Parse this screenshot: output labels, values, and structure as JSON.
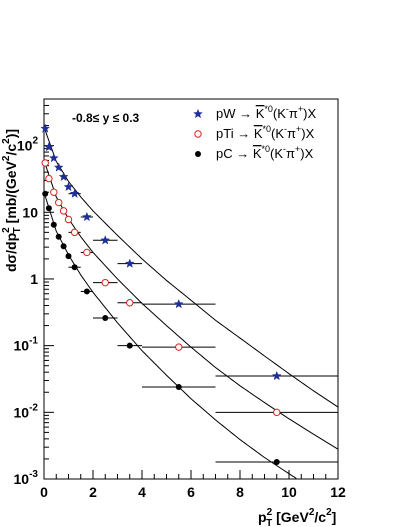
{
  "chart_data": {
    "type": "scatter",
    "title": "",
    "annotation": "-0.8≤ y ≤ 0.3",
    "xlabel": "p_T^2 [GeV^2/c^2]",
    "xlabel_parts": {
      "p": "p",
      "sup": "2",
      "sub": "T",
      "rest": " [GeV",
      "sup2": "2",
      "rest2": "/c",
      "sup3": "2",
      "end": "]"
    },
    "ylabel": "dσ/dp_T^2 [mb/(GeV^2/c^2)]",
    "ylabel_parts": {
      "pre": "dσ/dp",
      "sup": "2",
      "sub": "T",
      "mid": " [mb/(GeV",
      "sup2": "2",
      "mid2": "/c",
      "sup3": "2",
      "end": ")]"
    },
    "xlim": [
      0,
      12
    ],
    "ylim": [
      0.001,
      500
    ],
    "yscale": "log",
    "x_ticks": [
      0,
      2,
      4,
      6,
      8,
      10,
      12
    ],
    "x_tick_labels": [
      "0",
      "2",
      "4",
      "6",
      "8",
      "10",
      "12"
    ],
    "y_tick_labels": [
      {
        "value": 0.001,
        "base": "10",
        "exp": "-3"
      },
      {
        "value": 0.01,
        "base": "10",
        "exp": "-2"
      },
      {
        "value": 0.1,
        "base": "10",
        "exp": "-1"
      },
      {
        "value": 1,
        "base": "1",
        "exp": ""
      },
      {
        "value": 10,
        "base": "10",
        "exp": ""
      },
      {
        "value": 100,
        "base": "10",
        "exp": "2"
      }
    ],
    "grid": false,
    "legend_position": "top-right",
    "series": [
      {
        "name": "pW → K*0(K⁻π⁺)X",
        "label_parts": {
          "a": "pW → ",
          "k": "K",
          "sup": "*0",
          "b": "(K",
          "sup2": "-",
          "c": "π",
          "sup3": "+",
          "d": ")X"
        },
        "marker": "star",
        "color": "#1f2f9a",
        "points": [
          {
            "x": 0.05,
            "y": 180,
            "xerr": 0.05
          },
          {
            "x": 0.2,
            "y": 95,
            "xerr": 0.1
          },
          {
            "x": 0.4,
            "y": 65,
            "xerr": 0.1
          },
          {
            "x": 0.6,
            "y": 47,
            "xerr": 0.1
          },
          {
            "x": 0.8,
            "y": 34,
            "xerr": 0.1
          },
          {
            "x": 1.0,
            "y": 24,
            "xerr": 0.1
          },
          {
            "x": 1.25,
            "y": 19,
            "xerr": 0.25
          },
          {
            "x": 1.75,
            "y": 8.5,
            "xerr": 0.25
          },
          {
            "x": 2.5,
            "y": 3.8,
            "xerr": 0.5
          },
          {
            "x": 3.5,
            "y": 1.7,
            "xerr": 0.5
          },
          {
            "x": 5.5,
            "y": 0.42,
            "xerr": 1.5
          },
          {
            "x": 9.5,
            "y": 0.035,
            "xerr": 2.5
          }
        ]
      },
      {
        "name": "pTi → K*0(K⁻π⁺)X",
        "label_parts": {
          "a": "pTi → ",
          "k": "K",
          "sup": "*0",
          "b": "(K",
          "sup2": "-",
          "c": "π",
          "sup3": "+",
          "d": ")X"
        },
        "marker": "open-circle",
        "color": "#e02020",
        "points": [
          {
            "x": 0.05,
            "y": 55,
            "xerr": 0.05
          },
          {
            "x": 0.2,
            "y": 32,
            "xerr": 0.1
          },
          {
            "x": 0.4,
            "y": 20,
            "xerr": 0.1
          },
          {
            "x": 0.6,
            "y": 14,
            "xerr": 0.1
          },
          {
            "x": 0.8,
            "y": 10.5,
            "xerr": 0.1
          },
          {
            "x": 1.0,
            "y": 7.8,
            "xerr": 0.1
          },
          {
            "x": 1.25,
            "y": 5.0,
            "xerr": 0.25
          },
          {
            "x": 1.75,
            "y": 2.5,
            "xerr": 0.25
          },
          {
            "x": 2.5,
            "y": 0.88,
            "xerr": 0.5
          },
          {
            "x": 3.5,
            "y": 0.44,
            "xerr": 0.5
          },
          {
            "x": 5.5,
            "y": 0.095,
            "xerr": 1.5
          },
          {
            "x": 9.5,
            "y": 0.01,
            "xerr": 2.5
          }
        ]
      },
      {
        "name": "pC → K*0(K⁻π⁺)X",
        "label_parts": {
          "a": "pC → ",
          "k": "K",
          "sup": "*0",
          "b": "(K",
          "sup2": "-",
          "c": "π",
          "sup3": "+",
          "d": ")X"
        },
        "marker": "filled-circle",
        "color": "#000000",
        "points": [
          {
            "x": 0.05,
            "y": 19,
            "xerr": 0.05
          },
          {
            "x": 0.2,
            "y": 11.5,
            "xerr": 0.1
          },
          {
            "x": 0.4,
            "y": 6.5,
            "xerr": 0.1
          },
          {
            "x": 0.6,
            "y": 4.3,
            "xerr": 0.1
          },
          {
            "x": 0.8,
            "y": 3.1,
            "xerr": 0.1
          },
          {
            "x": 1.0,
            "y": 2.2,
            "xerr": 0.1
          },
          {
            "x": 1.25,
            "y": 1.5,
            "xerr": 0.25
          },
          {
            "x": 1.75,
            "y": 0.65,
            "xerr": 0.25
          },
          {
            "x": 2.5,
            "y": 0.26,
            "xerr": 0.5
          },
          {
            "x": 3.5,
            "y": 0.1,
            "xerr": 0.5
          },
          {
            "x": 5.5,
            "y": 0.024,
            "xerr": 1.5
          },
          {
            "x": 9.5,
            "y": 0.0018,
            "xerr": 2.5
          }
        ]
      }
    ],
    "fits": [
      {
        "series": "pW",
        "points": [
          [
            0.0,
            190
          ],
          [
            0.5,
            58
          ],
          [
            1,
            29
          ],
          [
            1.5,
            17
          ],
          [
            2,
            10.5
          ],
          [
            3,
            4.5
          ],
          [
            4,
            2.0
          ],
          [
            5,
            0.95
          ],
          [
            6,
            0.48
          ],
          [
            7,
            0.24
          ],
          [
            8,
            0.13
          ],
          [
            9,
            0.07
          ],
          [
            10,
            0.038
          ],
          [
            11,
            0.021
          ],
          [
            12,
            0.012
          ]
        ]
      },
      {
        "series": "pTi",
        "points": [
          [
            0.0,
            60
          ],
          [
            0.5,
            17
          ],
          [
            1,
            8.0
          ],
          [
            1.5,
            4.3
          ],
          [
            2,
            2.5
          ],
          [
            3,
            1.0
          ],
          [
            4,
            0.43
          ],
          [
            5,
            0.2
          ],
          [
            6,
            0.095
          ],
          [
            7,
            0.047
          ],
          [
            8,
            0.025
          ],
          [
            9,
            0.014
          ],
          [
            10,
            0.008
          ],
          [
            11,
            0.0047
          ],
          [
            12,
            0.0028
          ]
        ]
      },
      {
        "series": "pC",
        "points": [
          [
            0.0,
            20
          ],
          [
            0.5,
            5.2
          ],
          [
            1,
            2.3
          ],
          [
            1.5,
            1.15
          ],
          [
            2,
            0.63
          ],
          [
            3,
            0.22
          ],
          [
            4,
            0.084
          ],
          [
            5,
            0.036
          ],
          [
            6,
            0.016
          ],
          [
            7,
            0.0077
          ],
          [
            8,
            0.0039
          ],
          [
            9,
            0.0021
          ],
          [
            10,
            0.0012
          ],
          [
            11,
            0.0007
          ],
          [
            12,
            0.00045
          ]
        ]
      }
    ]
  }
}
